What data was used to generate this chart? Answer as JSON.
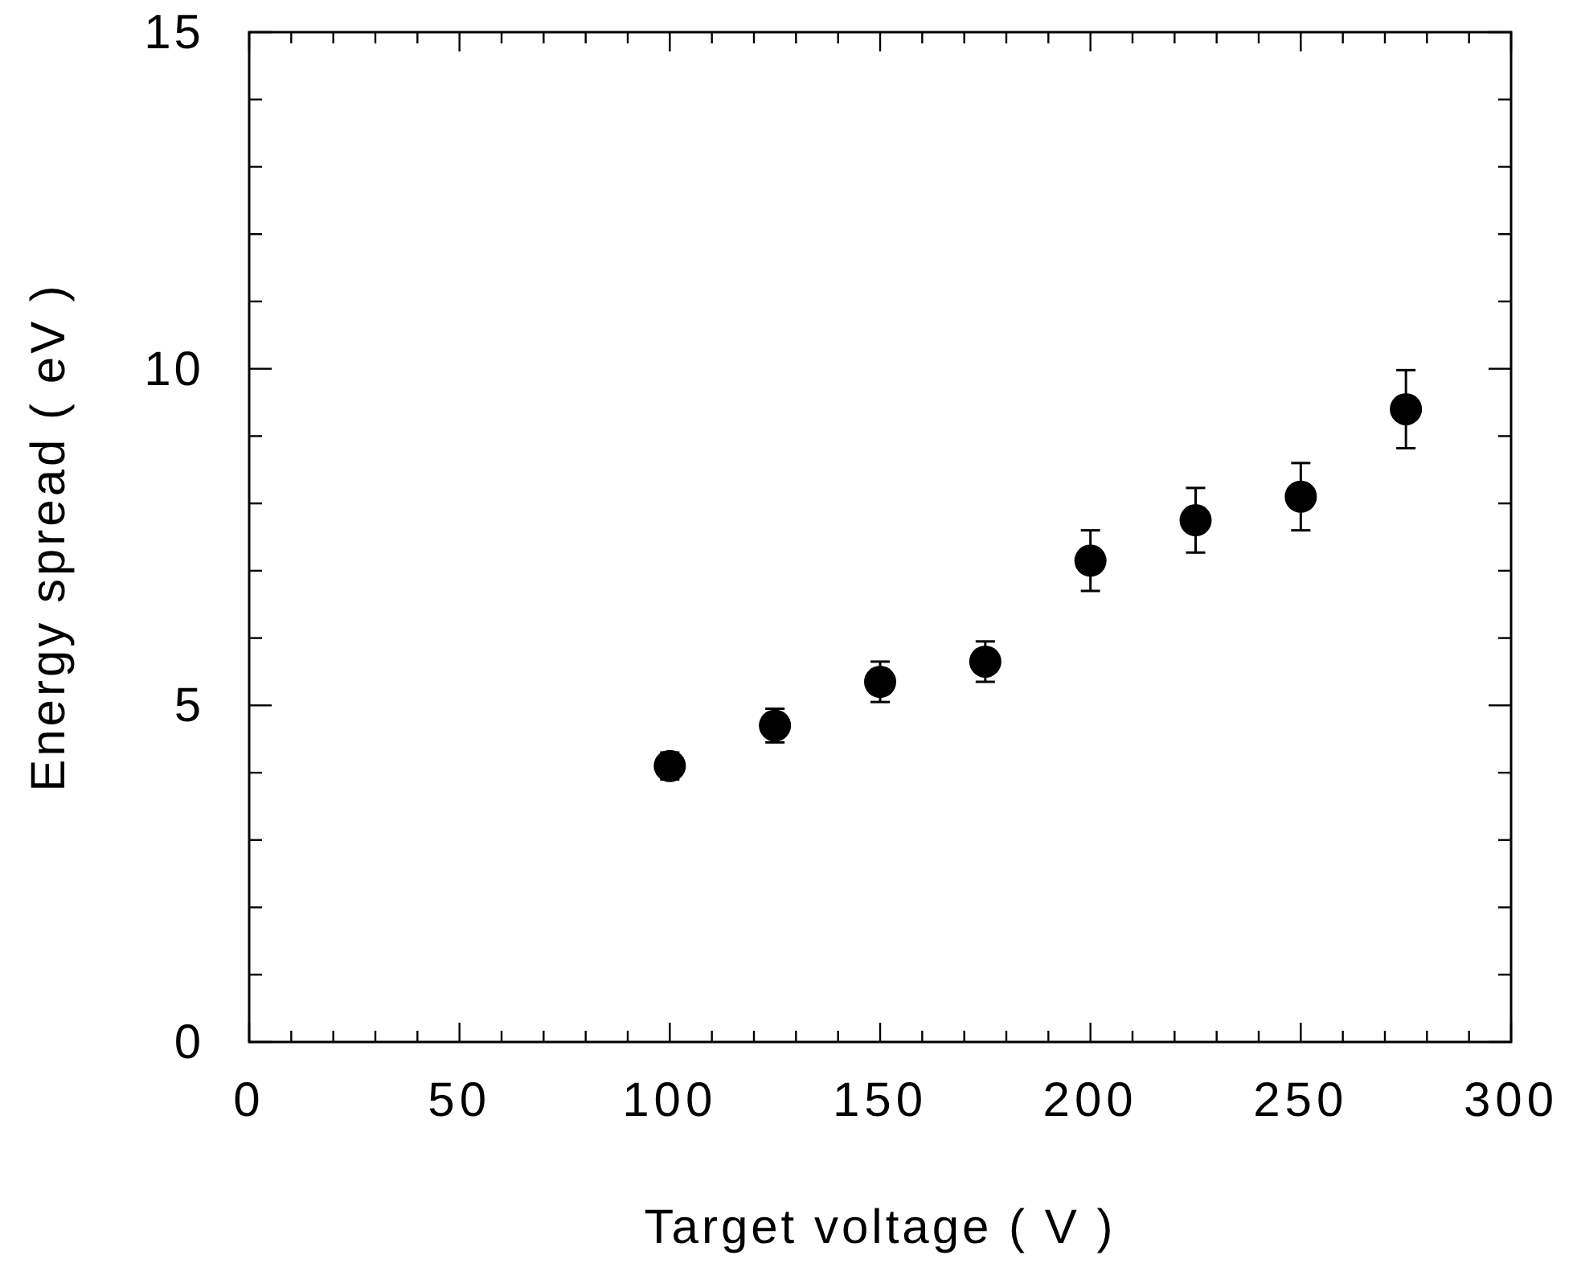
{
  "chart_data": {
    "type": "scatter",
    "xlabel": "Target voltage ( V )",
    "ylabel": "Energy spread ( eV )",
    "x": [
      100,
      125,
      150,
      175,
      200,
      225,
      250,
      275
    ],
    "series": [
      {
        "color": "#000000",
        "values": [
          4.1,
          4.7,
          5.35,
          5.65,
          7.15,
          7.75,
          8.1,
          9.4
        ],
        "errors": [
          0.2,
          0.25,
          0.3,
          0.3,
          0.45,
          0.48,
          0.5,
          0.58
        ]
      }
    ],
    "xlim": [
      0,
      300
    ],
    "ylim": [
      0,
      15
    ],
    "xticks": [
      0,
      {
        "value": 10,
        "label": null
      },
      {
        "value": 20,
        "label": null
      },
      {
        "value": 30,
        "label": null
      },
      {
        "value": 40,
        "label": null
      },
      50,
      {
        "value": 60,
        "label": null
      },
      {
        "value": 70,
        "label": null
      },
      {
        "value": 80,
        "label": null
      },
      {
        "value": 90,
        "label": null
      },
      100,
      {
        "value": 110,
        "label": null
      },
      {
        "value": 120,
        "label": null
      },
      {
        "value": 130,
        "label": null
      },
      {
        "value": 140,
        "label": null
      },
      150,
      {
        "value": 160,
        "label": null
      },
      {
        "value": 170,
        "label": null
      },
      {
        "value": 180,
        "label": null
      },
      {
        "value": 190,
        "label": null
      },
      200,
      {
        "value": 210,
        "label": null
      },
      {
        "value": 220,
        "label": null
      },
      {
        "value": 230,
        "label": null
      },
      {
        "value": 240,
        "label": null
      },
      250,
      {
        "value": 260,
        "label": null
      },
      {
        "value": 270,
        "label": null
      },
      {
        "value": 280,
        "label": null
      },
      {
        "value": 290,
        "label": null
      },
      300
    ],
    "yticks": [
      0,
      {
        "value": 1,
        "label": null
      },
      {
        "value": 2,
        "label": null
      },
      {
        "value": 3,
        "label": null
      },
      {
        "value": 4,
        "label": null
      },
      5,
      {
        "value": 6,
        "label": null
      },
      {
        "value": 7,
        "label": null
      },
      {
        "value": 8,
        "label": null
      },
      {
        "value": 9,
        "label": null
      },
      10,
      {
        "value": 11,
        "label": null
      },
      {
        "value": 12,
        "label": null
      },
      {
        "value": 13,
        "label": null
      },
      {
        "value": 14,
        "label": null
      },
      15
    ],
    "grid": false,
    "marker": "circle"
  }
}
